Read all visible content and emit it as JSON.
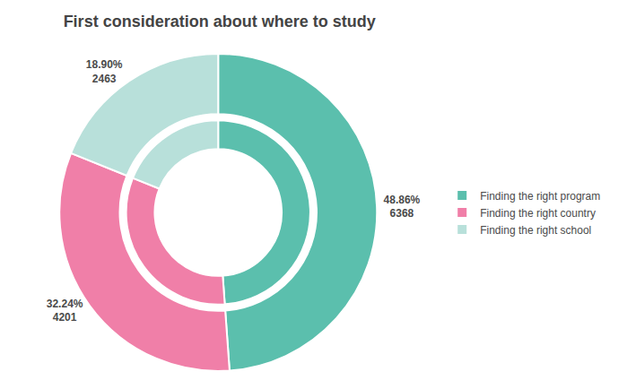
{
  "chart_data": {
    "type": "pie",
    "title": "First consideration about where to study",
    "categories": [
      "Finding the right program",
      "Finding the right country",
      "Finding the right school"
    ],
    "values": [
      48.86,
      32.24,
      18.9
    ],
    "value_labels": [
      "48.86%",
      "32.24%",
      "18.90%"
    ],
    "counts": [
      6368,
      4201,
      2463
    ],
    "colors": [
      "#5BBFAD",
      "#F07FA8",
      "#B8E0DA"
    ],
    "data_labels": true,
    "legend": "right"
  }
}
